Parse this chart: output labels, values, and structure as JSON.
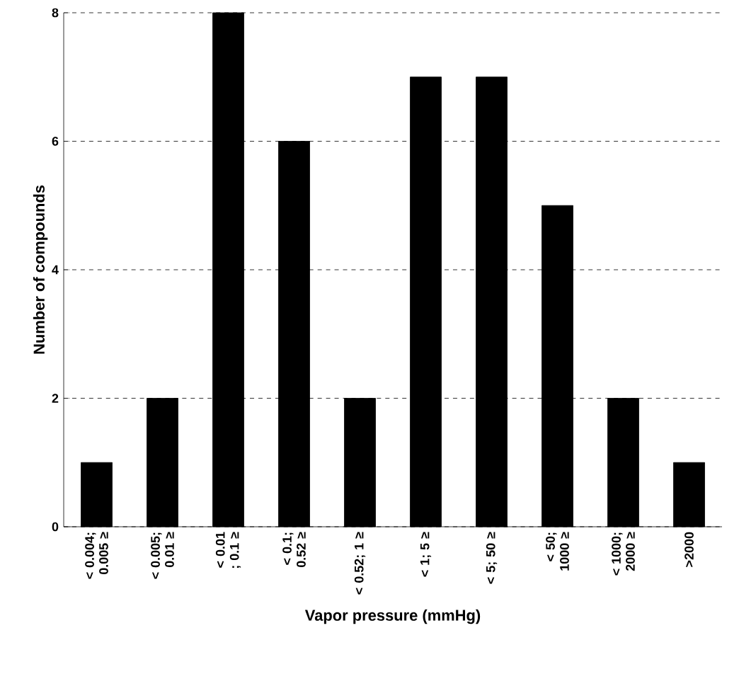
{
  "chart_data": {
    "type": "bar",
    "xlabel": "Vapor pressure (mmHg)",
    "ylabel": "Number of compounds",
    "categories": [
      "< 0.004; 0.005 ≥",
      "< 0.005; 0.01 ≥",
      "< 0.01 ; 0.1 ≥",
      "< 0.1; 0.52 ≥",
      "< 0.52; 1 ≥",
      "< 1; 5 ≥",
      "< 5; 50 ≥",
      "< 50; 1000 ≥",
      "< 1000; 2000 ≥",
      ">2000"
    ],
    "values": [
      1,
      2,
      8,
      6,
      2,
      7,
      7,
      5,
      2,
      1
    ],
    "color": "#000000",
    "ylim": [
      0,
      8
    ],
    "yticks": [
      0,
      2,
      4,
      6,
      8
    ],
    "grid": "y"
  }
}
